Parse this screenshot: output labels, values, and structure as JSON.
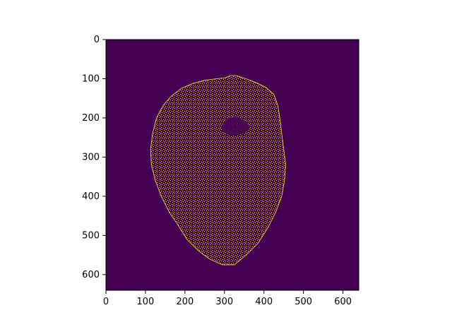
{
  "chart_data": {
    "type": "heatmap",
    "title": "",
    "xlabel": "",
    "ylabel": "",
    "xlim": [
      0,
      640
    ],
    "ylim": [
      640,
      0
    ],
    "xticks": [
      0,
      100,
      200,
      300,
      400,
      500,
      600
    ],
    "yticks": [
      0,
      100,
      200,
      300,
      400,
      500,
      600
    ],
    "colormap": "viridis",
    "background_value": 0,
    "edge_value": 1,
    "colors": {
      "background": "#440154",
      "edge": "#fde725",
      "axis": "#000000"
    },
    "description_fields": {
      "content": "binary edge-detection map of an axial brain MRI slice"
    },
    "shape": {
      "rows": 640,
      "cols": 640
    },
    "region_outline": [
      [
        330,
        92
      ],
      [
        360,
        102
      ],
      [
        385,
        112
      ],
      [
        405,
        122
      ],
      [
        425,
        140
      ],
      [
        435,
        168
      ],
      [
        440,
        200
      ],
      [
        445,
        240
      ],
      [
        450,
        280
      ],
      [
        455,
        320
      ],
      [
        452,
        360
      ],
      [
        445,
        400
      ],
      [
        430,
        440
      ],
      [
        410,
        480
      ],
      [
        385,
        520
      ],
      [
        355,
        550
      ],
      [
        325,
        575
      ],
      [
        295,
        575
      ],
      [
        262,
        560
      ],
      [
        235,
        540
      ],
      [
        205,
        510
      ],
      [
        180,
        470
      ],
      [
        160,
        440
      ],
      [
        140,
        400
      ],
      [
        125,
        360
      ],
      [
        115,
        320
      ],
      [
        113,
        280
      ],
      [
        118,
        240
      ],
      [
        128,
        200
      ],
      [
        145,
        168
      ],
      [
        165,
        145
      ],
      [
        190,
        125
      ],
      [
        220,
        112
      ],
      [
        250,
        104
      ],
      [
        280,
        100
      ],
      [
        300,
        98
      ],
      [
        315,
        92
      ]
    ],
    "inner_dark_region": [
      [
        305,
        205
      ],
      [
        330,
        195
      ],
      [
        355,
        210
      ],
      [
        365,
        225
      ],
      [
        350,
        240
      ],
      [
        325,
        245
      ],
      [
        300,
        238
      ],
      [
        292,
        222
      ]
    ]
  }
}
